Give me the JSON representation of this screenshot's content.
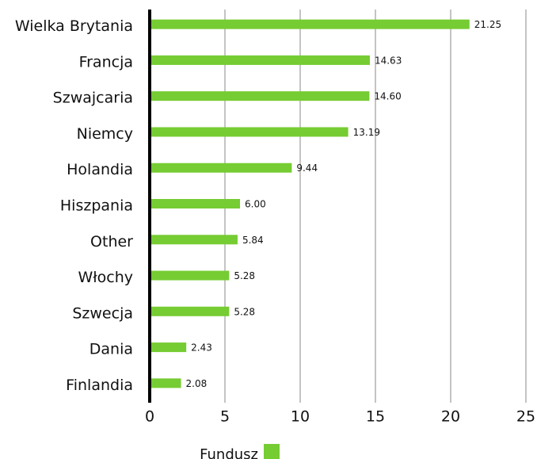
{
  "chart_data": {
    "type": "bar",
    "orientation": "horizontal",
    "categories": [
      "Wielka Brytania",
      "Francja",
      "Szwajcaria",
      "Niemcy",
      "Holandia",
      "Hiszpania",
      "Other",
      "Włochy",
      "Szwecja",
      "Dania",
      "Finlandia"
    ],
    "series": [
      {
        "name": "Fundusz",
        "color": "#76cc33",
        "values": [
          21.25,
          14.63,
          14.6,
          13.19,
          9.44,
          6,
          5.84,
          5.28,
          5.28,
          2.43,
          2.08
        ],
        "value_labels": [
          "21.25",
          "14.63",
          "14.60",
          "13.19",
          "9.44",
          "6.00",
          "5.84",
          "5.28",
          "5.28",
          "2.43",
          "2.08"
        ]
      }
    ],
    "xlim": [
      0,
      25
    ],
    "xticks": [
      0,
      5,
      10,
      15,
      20,
      25
    ],
    "grid": true,
    "legend": "bottom"
  }
}
